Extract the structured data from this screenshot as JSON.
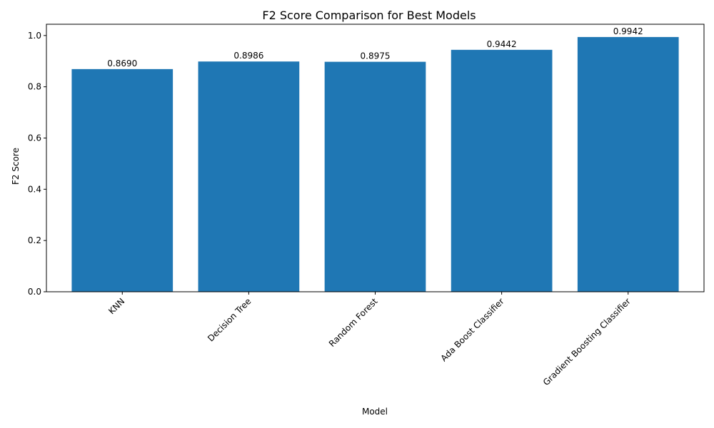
{
  "chart_data": {
    "type": "bar",
    "title": "F2 Score Comparison for Best Models",
    "xlabel": "Model",
    "ylabel": "F2 Score",
    "categories": [
      "KNN",
      "Decision Tree",
      "Random Forest",
      "Ada Boost Classifier",
      "Gradient Boosting Classifier"
    ],
    "values": [
      0.869,
      0.8986,
      0.8975,
      0.9442,
      0.9942
    ],
    "data_labels": [
      "0.8690",
      "0.8986",
      "0.8975",
      "0.9442",
      "0.9942"
    ],
    "ylim": [
      0,
      1.044
    ],
    "yticks": [
      0.0,
      0.2,
      0.4,
      0.6,
      0.8,
      1.0
    ],
    "ytick_labels": [
      "0.0",
      "0.2",
      "0.4",
      "0.6",
      "0.8",
      "1.0"
    ],
    "xtick_rotation": 45,
    "grid": false,
    "bar_color": "#1f77b4"
  }
}
